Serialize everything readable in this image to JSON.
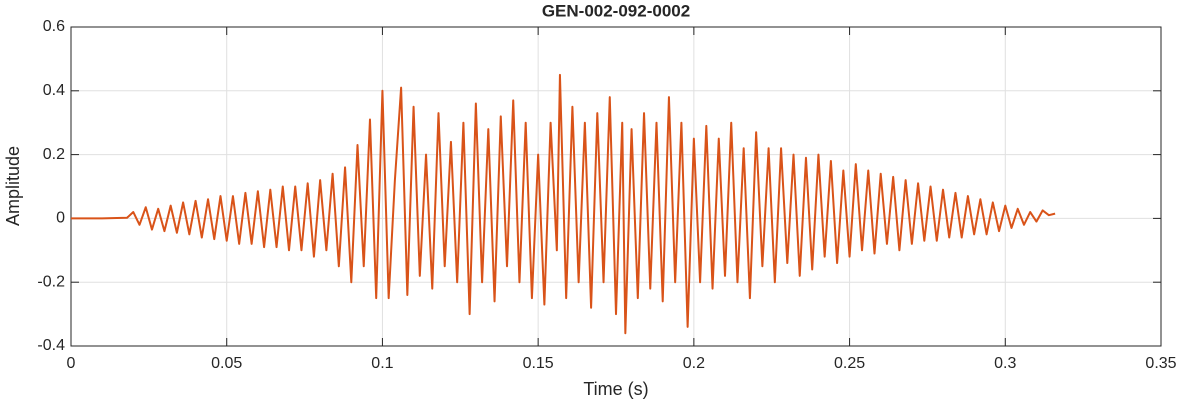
{
  "chart_data": {
    "type": "line",
    "title": "GEN-002-092-0002",
    "x_label": "Time (s)",
    "y_label": "Amplitude",
    "xlim": [
      0,
      0.35
    ],
    "xticks": [
      0,
      0.05,
      0.1,
      0.15,
      0.2,
      0.25,
      0.3,
      0.35
    ],
    "ylim": [
      -0.4,
      0.6
    ],
    "yticks": [
      -0.4,
      -0.2,
      0,
      0.2,
      0.4,
      0.6
    ],
    "grid": true,
    "series": [
      {
        "color": "#D95319",
        "x": [
          0,
          0.01,
          0.018,
          0.02,
          0.022,
          0.024,
          0.026,
          0.028,
          0.03,
          0.032,
          0.034,
          0.036,
          0.038,
          0.04,
          0.042,
          0.044,
          0.046,
          0.048,
          0.05,
          0.052,
          0.054,
          0.056,
          0.058,
          0.06,
          0.062,
          0.064,
          0.066,
          0.068,
          0.07,
          0.072,
          0.074,
          0.076,
          0.078,
          0.08,
          0.082,
          0.084,
          0.086,
          0.088,
          0.09,
          0.092,
          0.094,
          0.096,
          0.098,
          0.1,
          0.102,
          0.104,
          0.106,
          0.108,
          0.11,
          0.112,
          0.114,
          0.116,
          0.118,
          0.12,
          0.122,
          0.124,
          0.126,
          0.128,
          0.13,
          0.132,
          0.134,
          0.136,
          0.138,
          0.14,
          0.142,
          0.144,
          0.146,
          0.148,
          0.15,
          0.152,
          0.154,
          0.156,
          0.157,
          0.159,
          0.161,
          0.163,
          0.165,
          0.167,
          0.169,
          0.171,
          0.173,
          0.175,
          0.177,
          0.178,
          0.18,
          0.182,
          0.184,
          0.186,
          0.188,
          0.19,
          0.192,
          0.194,
          0.196,
          0.198,
          0.2,
          0.202,
          0.204,
          0.206,
          0.208,
          0.21,
          0.212,
          0.214,
          0.216,
          0.218,
          0.22,
          0.222,
          0.224,
          0.226,
          0.228,
          0.23,
          0.232,
          0.234,
          0.236,
          0.238,
          0.24,
          0.242,
          0.244,
          0.246,
          0.248,
          0.25,
          0.252,
          0.254,
          0.256,
          0.258,
          0.26,
          0.262,
          0.264,
          0.266,
          0.268,
          0.27,
          0.272,
          0.274,
          0.276,
          0.278,
          0.28,
          0.282,
          0.284,
          0.286,
          0.288,
          0.29,
          0.292,
          0.294,
          0.296,
          0.298,
          0.3,
          0.302,
          0.304,
          0.306,
          0.308,
          0.31,
          0.312,
          0.314,
          0.316
        ],
        "values": [
          0,
          0,
          0.002,
          0.02,
          -0.02,
          0.035,
          -0.035,
          0.03,
          -0.04,
          0.04,
          -0.045,
          0.05,
          -0.05,
          0.055,
          -0.06,
          0.06,
          -0.065,
          0.07,
          -0.07,
          0.07,
          -0.08,
          0.08,
          -0.08,
          0.085,
          -0.09,
          0.09,
          -0.09,
          0.1,
          -0.1,
          0.1,
          -0.1,
          0.11,
          -0.12,
          0.12,
          -0.1,
          0.14,
          -0.15,
          0.16,
          -0.2,
          0.23,
          -0.15,
          0.31,
          -0.25,
          0.4,
          -0.25,
          0.12,
          0.41,
          -0.24,
          0.35,
          -0.18,
          0.2,
          -0.22,
          0.33,
          -0.15,
          0.24,
          -0.2,
          0.3,
          -0.3,
          0.36,
          -0.2,
          0.28,
          -0.26,
          0.32,
          -0.15,
          0.37,
          -0.2,
          0.3,
          -0.25,
          0.2,
          -0.27,
          0.3,
          -0.1,
          0.45,
          -0.25,
          0.35,
          -0.2,
          0.3,
          -0.28,
          0.33,
          -0.2,
          0.38,
          -0.3,
          0.3,
          -0.36,
          0.28,
          -0.25,
          0.33,
          -0.22,
          0.3,
          -0.26,
          0.38,
          -0.2,
          0.3,
          -0.34,
          0.25,
          -0.2,
          0.29,
          -0.22,
          0.25,
          -0.18,
          0.3,
          -0.2,
          0.22,
          -0.25,
          0.27,
          -0.15,
          0.22,
          -0.2,
          0.22,
          -0.14,
          0.2,
          -0.18,
          0.19,
          -0.16,
          0.2,
          -0.12,
          0.18,
          -0.14,
          0.15,
          -0.12,
          0.17,
          -0.1,
          0.15,
          -0.11,
          0.14,
          -0.08,
          0.13,
          -0.1,
          0.12,
          -0.08,
          0.11,
          -0.07,
          0.1,
          -0.07,
          0.09,
          -0.06,
          0.08,
          -0.06,
          0.07,
          -0.05,
          0.06,
          -0.05,
          0.05,
          -0.04,
          0.04,
          -0.03,
          0.03,
          -0.02,
          0.02,
          -0.01,
          0.025,
          0.01,
          0.015
        ]
      }
    ]
  }
}
